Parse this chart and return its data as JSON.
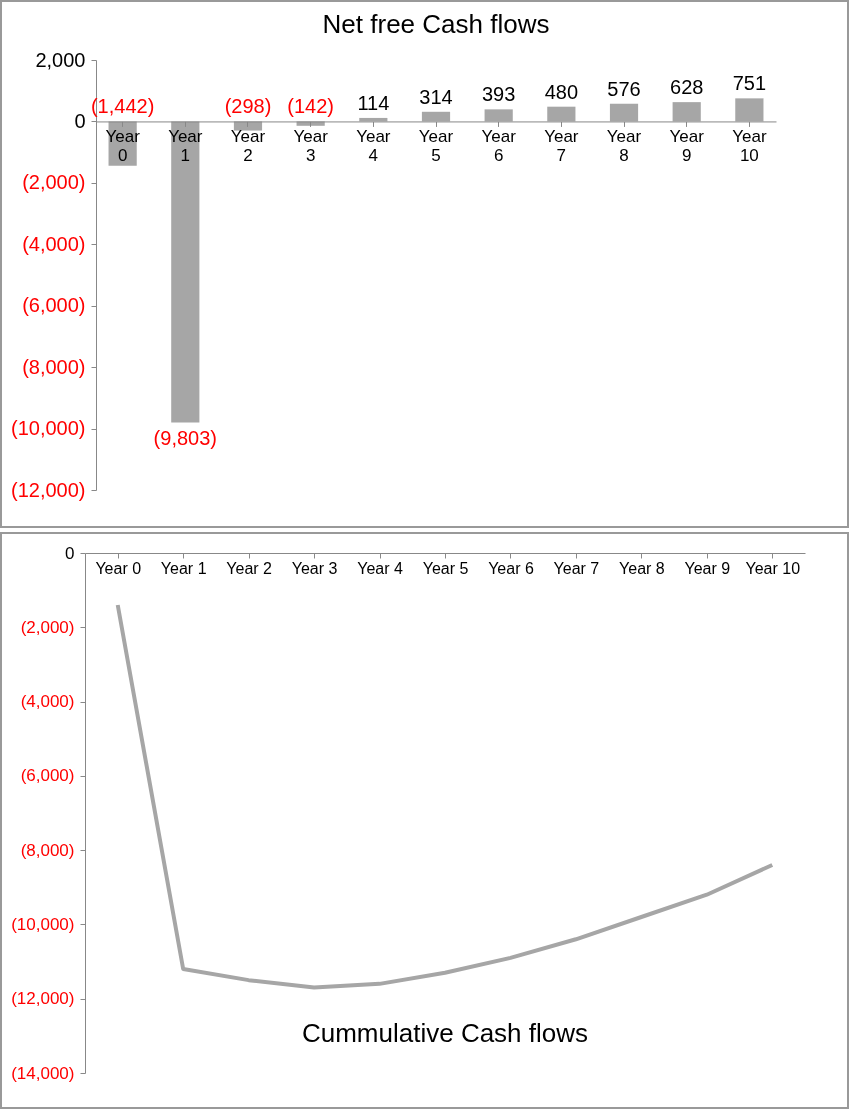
{
  "chart_data": [
    {
      "type": "bar",
      "title": "Net free Cash flows",
      "categories": [
        "Year 0",
        "Year 1",
        "Year 2",
        "Year 3",
        "Year 4",
        "Year 5",
        "Year 6",
        "Year 7",
        "Year 8",
        "Year 9",
        "Year 10"
      ],
      "values": [
        -1442,
        -9803,
        -298,
        -142,
        114,
        314,
        393,
        480,
        576,
        628,
        751
      ],
      "value_labels": [
        "(1,442)",
        "(9,803)",
        "(298)",
        "(142)",
        "114",
        "314",
        "393",
        "480",
        "576",
        "628",
        "751"
      ],
      "color": "#a6a6a6",
      "ylim": [
        -12000,
        2000
      ],
      "yticks": [
        {
          "value": -12000,
          "label": "(12,000)"
        },
        {
          "value": -10000,
          "label": "(10,000)"
        },
        {
          "value": -8000,
          "label": "(8,000)"
        },
        {
          "value": -6000,
          "label": "(6,000)"
        },
        {
          "value": -4000,
          "label": "(4,000)"
        },
        {
          "value": -2000,
          "label": "(2,000)"
        },
        0,
        {
          "value": 2000,
          "label": "2,000"
        }
      ],
      "grid": false
    },
    {
      "type": "line",
      "title": "Cummulative Cash flows",
      "categories": [
        "Year 0",
        "Year 1",
        "Year 2",
        "Year 3",
        "Year 4",
        "Year 5",
        "Year 6",
        "Year 7",
        "Year 8",
        "Year 9",
        "Year 10"
      ],
      "values": [
        -1400,
        -11200,
        -11500,
        -11700,
        -11600,
        -11300,
        -10900,
        -10400,
        -9800,
        -9200,
        -8400
      ],
      "color": "#a6a6a6",
      "ylim": [
        -14000,
        0
      ],
      "yticks": [
        {
          "value": -14000,
          "label": "(14,000)"
        },
        {
          "value": -12000,
          "label": "(12,000)"
        },
        {
          "value": -10000,
          "label": "(10,000)"
        },
        {
          "value": -8000,
          "label": "(8,000)"
        },
        {
          "value": -6000,
          "label": "(6,000)"
        },
        {
          "value": -4000,
          "label": "(4,000)"
        },
        {
          "value": -2000,
          "label": "(2,000)"
        },
        0
      ],
      "grid": false
    }
  ]
}
